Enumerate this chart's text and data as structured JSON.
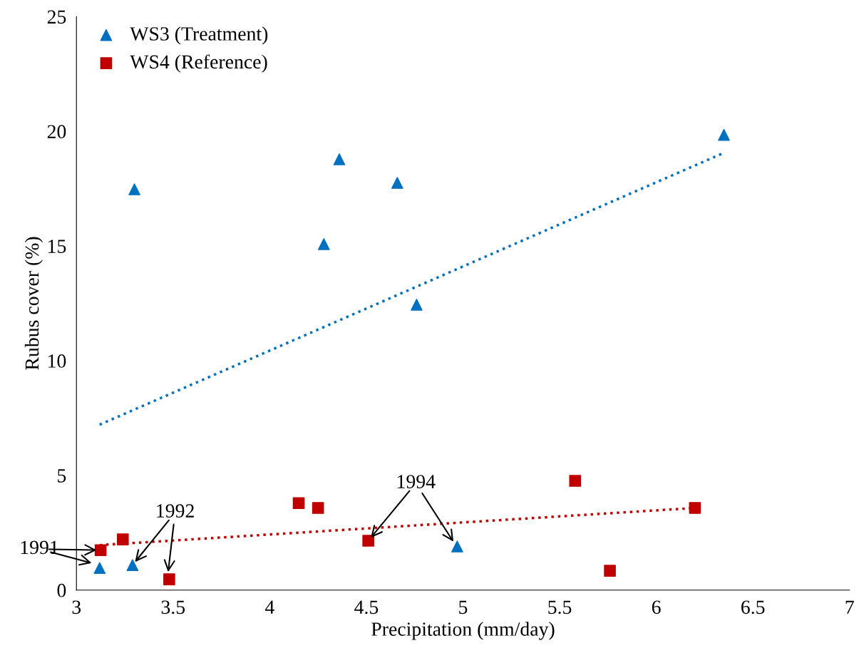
{
  "chart_data": {
    "type": "scatter",
    "xlabel": "Precipitation (mm/day)",
    "ylabel": "Rubus cover (%)",
    "xlim": [
      3,
      7
    ],
    "xticks": [
      3,
      3.5,
      4,
      4.5,
      5,
      5.5,
      6,
      6.5,
      7
    ],
    "ylim": [
      0,
      25
    ],
    "yticks": [
      0,
      5,
      10,
      15,
      20,
      25
    ],
    "grid": false,
    "legend": "top left",
    "series": [
      {
        "name": "WS3 (Treatment)",
        "color": "#0070c0",
        "marker": "triangle",
        "x": [
          3.12,
          3.29,
          3.3,
          4.28,
          4.36,
          4.66,
          4.76,
          4.97,
          6.35
        ],
        "values": [
          0.96,
          1.09,
          17.47,
          15.08,
          18.78,
          17.75,
          12.44,
          1.9,
          19.84
        ]
      },
      {
        "name": "WS4 (Reference)",
        "color": "#c00000",
        "marker": "square",
        "x": [
          3.125,
          3.24,
          3.48,
          4.15,
          4.25,
          4.51,
          5.58,
          5.76,
          6.2
        ],
        "values": [
          1.74,
          2.21,
          0.47,
          3.79,
          3.58,
          2.15,
          4.76,
          0.84,
          3.58
        ]
      },
      {
        "type": "line",
        "color": "#0070c0",
        "line_style": "dotted",
        "marker": "none",
        "x": [
          3.12,
          6.35
        ],
        "values": [
          7.21,
          19.06
        ]
      },
      {
        "type": "line",
        "color": "#c00000",
        "line_style": "dotted",
        "marker": "none",
        "x": [
          3.12,
          6.2
        ],
        "values": [
          1.96,
          3.58
        ]
      }
    ],
    "annotations": [
      {
        "text": "1991",
        "x": 3.125,
        "y": 1.74
      },
      {
        "text": "1992",
        "x": 3.29,
        "y": 1.09
      },
      {
        "text": "1994",
        "x": 4.51,
        "y": 2.15
      }
    ]
  }
}
